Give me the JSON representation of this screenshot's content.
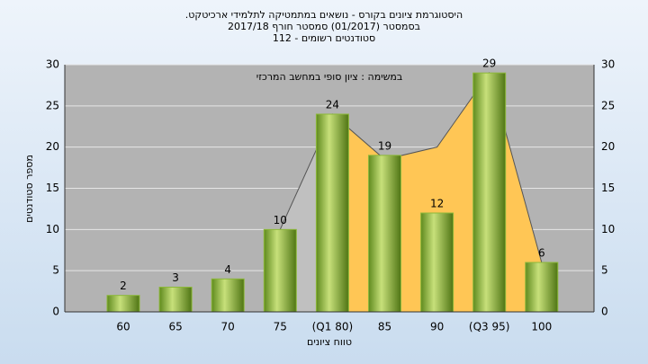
{
  "chart_data": {
    "type": "bar",
    "title": "היסטוגרמת ציונים בקורס - נושאים במתמטיקה לתלמידי ארכיטקט.",
    "subtitle": "בסמסטר (01/2017) סמסטר חורף 2017/18",
    "subtitle2": "סטודנטים רשומים - 112",
    "annotation": "במשימה : ציון סופי במחשב המרכזי",
    "ylabel": "מספר סטודנטים",
    "xlabel": "טווח ציונים",
    "categories": [
      "60",
      "65",
      "70",
      "75",
      "(Q1 80)",
      "85",
      "90",
      "(Q3 95)",
      "100"
    ],
    "values": [
      2,
      3,
      4,
      10,
      24,
      19,
      12,
      29,
      6
    ],
    "color": "#8cb83a",
    "area_values": [
      null,
      null,
      null,
      10,
      24,
      18.5,
      20,
      29,
      6
    ],
    "area_colors": [
      "#c0c0c0",
      "#ffc655"
    ],
    "ylim": [
      0,
      30
    ],
    "yticks": [
      0,
      5,
      10,
      15,
      20,
      25,
      30
    ],
    "grid": true
  }
}
